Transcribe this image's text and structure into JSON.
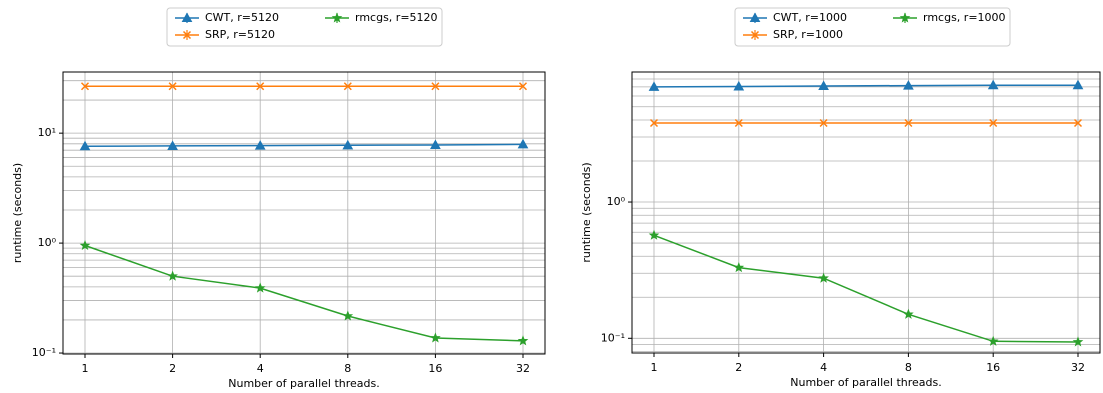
{
  "chart_data": [
    {
      "type": "line",
      "xlabel": "Number of parallel threads.",
      "ylabel": "runtime (seconds)",
      "categories": [
        "1",
        "2",
        "4",
        "8",
        "16",
        "32"
      ],
      "log_y": true,
      "grid": true,
      "legend": "upper center outside",
      "ylim": [
        0.098,
        36
      ],
      "yticks": [
        {
          "value": 0.1,
          "label": "10⁻¹"
        },
        {
          "value": 1,
          "label": "10⁰"
        },
        {
          "value": 10,
          "label": "10¹"
        }
      ],
      "yminorticks": [
        0.2,
        0.3,
        0.4,
        0.5,
        0.6,
        0.7,
        0.8,
        0.9,
        2,
        3,
        4,
        5,
        6,
        7,
        8,
        9,
        20,
        30
      ],
      "series": [
        {
          "name": "CWT, r=5120",
          "color": "#1f77b4",
          "marker": "triangle",
          "values": [
            7.6,
            7.65,
            7.7,
            7.75,
            7.8,
            7.9
          ]
        },
        {
          "name": "SRP, r=5120",
          "color": "#ff7f0e",
          "marker": "x",
          "values": [
            26.7,
            26.7,
            26.7,
            26.7,
            26.7,
            26.7
          ]
        },
        {
          "name": "rmcgs, r=5120",
          "color": "#2ca02c",
          "marker": "star",
          "values": [
            0.95,
            0.5,
            0.39,
            0.217,
            0.137,
            0.129
          ]
        }
      ]
    },
    {
      "type": "line",
      "xlabel": "Number of parallel threads.",
      "ylabel": "runtime (seconds)",
      "categories": [
        "1",
        "2",
        "4",
        "8",
        "16",
        "32"
      ],
      "log_y": true,
      "grid": true,
      "legend": "upper center outside",
      "ylim": [
        0.078,
        9.0
      ],
      "yticks": [
        {
          "value": 0.1,
          "label": "10⁻¹"
        },
        {
          "value": 1,
          "label": "10⁰"
        }
      ],
      "yminorticks": [
        0.08,
        0.09,
        0.2,
        0.3,
        0.4,
        0.5,
        0.6,
        0.7,
        0.8,
        0.9,
        2,
        3,
        4,
        5,
        6,
        7,
        8,
        9
      ],
      "series": [
        {
          "name": "CWT, r=1000",
          "color": "#1f77b4",
          "marker": "triangle",
          "values": [
            7.0,
            7.05,
            7.1,
            7.15,
            7.2,
            7.2
          ]
        },
        {
          "name": "SRP, r=1000",
          "color": "#ff7f0e",
          "marker": "x",
          "values": [
            3.8,
            3.8,
            3.8,
            3.8,
            3.8,
            3.8
          ]
        },
        {
          "name": "rmcgs, r=1000",
          "color": "#2ca02c",
          "marker": "star",
          "values": [
            0.57,
            0.33,
            0.276,
            0.15,
            0.095,
            0.094
          ]
        }
      ]
    }
  ]
}
